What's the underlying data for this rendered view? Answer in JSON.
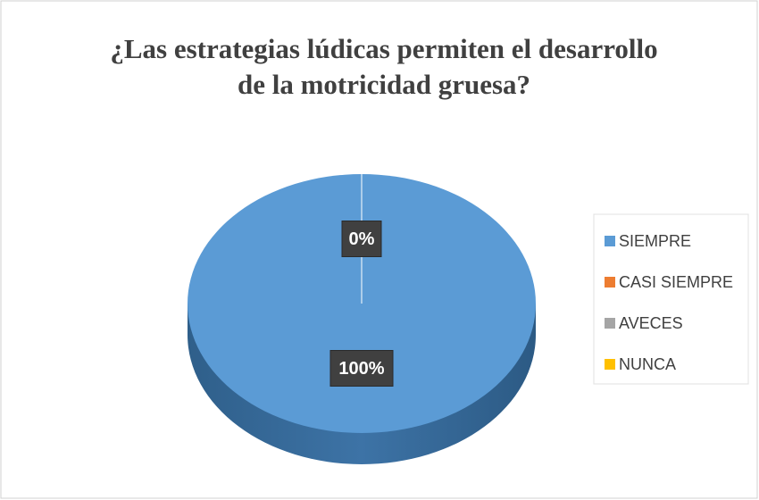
{
  "chart_data": {
    "type": "pie",
    "title": "¿Las estrategias lúdicas permiten el desarrollo de la motricidad gruesa?",
    "categories": [
      "SIEMPRE",
      "CASI SIEMPRE",
      "AVECES",
      "NUNCA"
    ],
    "values": [
      100,
      0,
      0,
      0
    ],
    "value_labels": [
      "100%",
      "0%",
      null,
      null
    ],
    "colors": [
      "#5b9bd5",
      "#ed7d31",
      "#a5a5a5",
      "#ffc000"
    ],
    "legend": "right"
  }
}
